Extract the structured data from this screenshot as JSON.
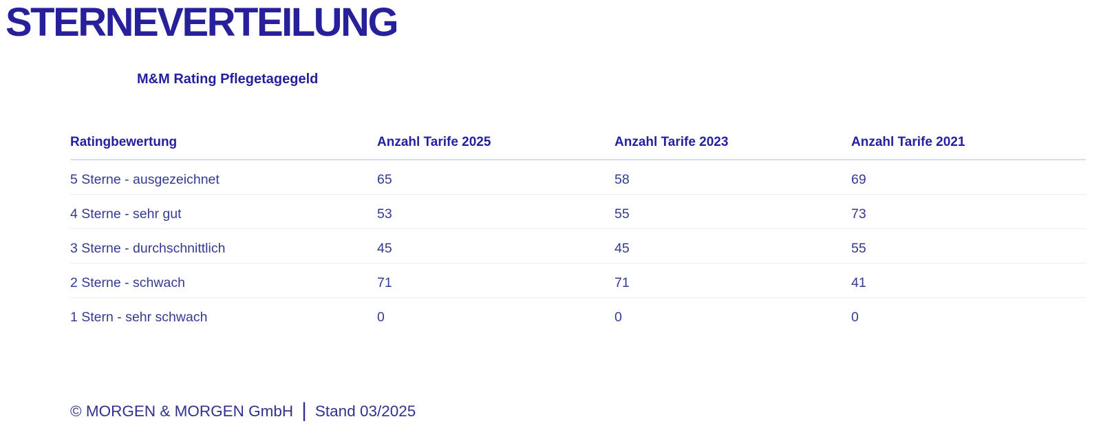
{
  "page": {
    "title": "STERNEVERTEILUNG",
    "subtitle": "M&M Rating Pflegetagegeld"
  },
  "footer": {
    "copyright": "© MORGEN & MORGEN GmbH",
    "separator": "|",
    "stand": "Stand 03/2025"
  },
  "colors": {
    "title_blue": "#281f9b",
    "heading_blue": "#231f9e",
    "body_blue": "#333a8f",
    "footer_blue": "#30318c",
    "header_divider": "#d8dfe8",
    "row_divider": "#eaeef3",
    "background": "#ffffff"
  },
  "chart_data": {
    "type": "table",
    "title": "STERNEVERTEILUNG",
    "subtitle": "M&M Rating Pflegetagegeld",
    "columns": [
      "Ratingbewertung",
      "Anzahl Tarife 2025",
      "Anzahl Tarife 2023",
      "Anzahl Tarife 2021"
    ],
    "rows": [
      {
        "label": "5 Sterne - ausgezeichnet",
        "values": [
          65,
          58,
          69
        ]
      },
      {
        "label": "4 Sterne - sehr gut",
        "values": [
          53,
          55,
          73
        ]
      },
      {
        "label": "3 Sterne - durchschnittlich",
        "values": [
          45,
          45,
          55
        ]
      },
      {
        "label": "2 Sterne - schwach",
        "values": [
          71,
          71,
          41
        ]
      },
      {
        "label": "1 Stern - sehr schwach",
        "values": [
          0,
          0,
          0
        ]
      }
    ],
    "source": "© MORGEN & MORGEN GmbH | Stand 03/2025",
    "layout": {
      "grid": "horizontal-row-dividers",
      "legend": "none"
    }
  }
}
